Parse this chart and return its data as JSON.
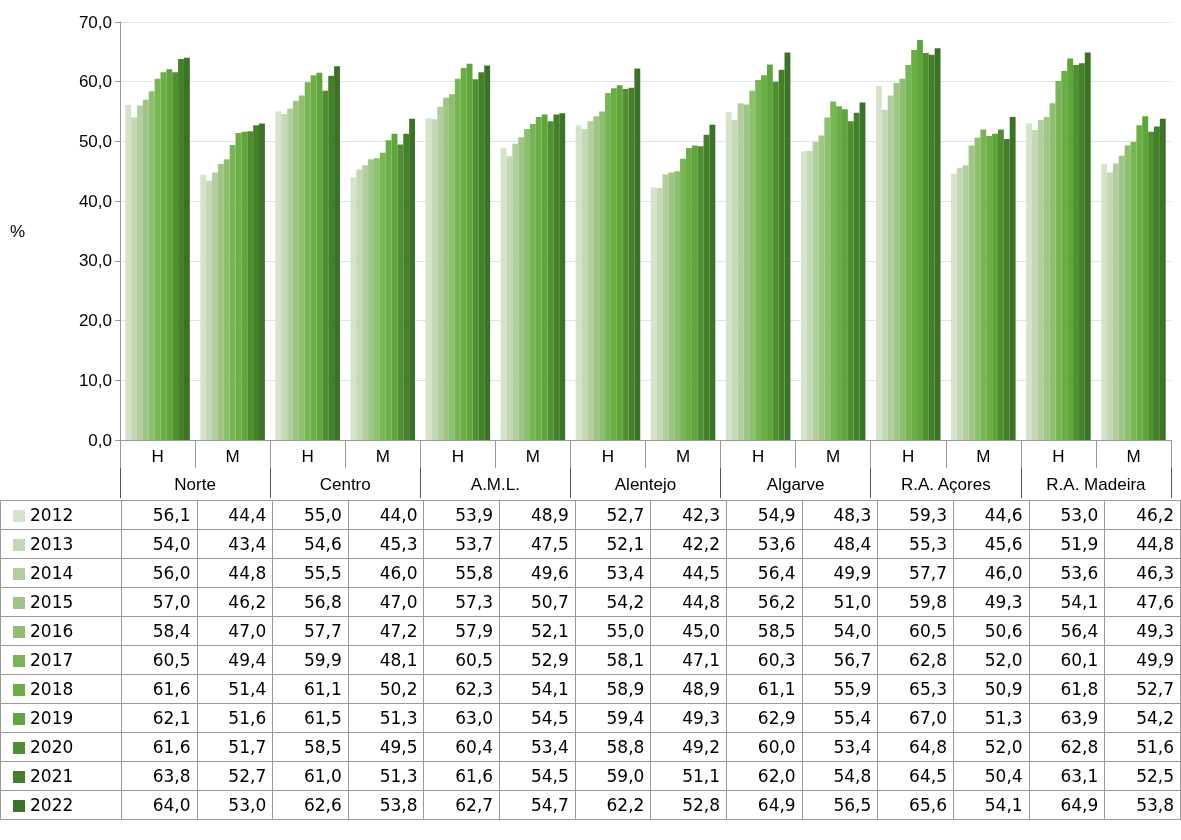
{
  "chart_data": {
    "type": "bar",
    "ylabel": "%",
    "categories": [
      "H",
      "M",
      "H",
      "M",
      "H",
      "M",
      "H",
      "M",
      "H",
      "M",
      "H",
      "M",
      "H",
      "M"
    ],
    "annotations": [
      "Norte",
      "Centro",
      "A.M.L.",
      "Alentejo",
      "Algarve",
      "R.A. Açores",
      "R.A. Madeira"
    ],
    "ylim": [
      0,
      70
    ],
    "yticks": [
      {
        "value": 0,
        "label": "0,0"
      },
      {
        "value": 10,
        "label": "10,0"
      },
      {
        "value": 20,
        "label": "20,0"
      },
      {
        "value": 30,
        "label": "30,0"
      },
      {
        "value": 40,
        "label": "40,0"
      },
      {
        "value": 50,
        "label": "50,0"
      },
      {
        "value": 60,
        "label": "60,0"
      },
      {
        "value": 70,
        "label": "70,0"
      }
    ],
    "grid": "y",
    "legend": "bottom",
    "series": [
      {
        "name": "2012",
        "color": "#d4e3c9",
        "values": [
          56.1,
          44.4,
          55.0,
          44.0,
          53.9,
          48.9,
          52.7,
          42.3,
          54.9,
          48.3,
          59.3,
          44.6,
          53.0,
          46.2
        ],
        "value_labels": [
          "56,1",
          "44,4",
          "55,0",
          "44,0",
          "53,9",
          "48,9",
          "52,7",
          "42,3",
          "54,9",
          "48,3",
          "59,3",
          "44,6",
          "53,0",
          "46,2"
        ]
      },
      {
        "name": "2013",
        "color": "#c3d8b3",
        "values": [
          54.0,
          43.4,
          54.6,
          45.3,
          53.7,
          47.5,
          52.1,
          42.2,
          53.6,
          48.4,
          55.3,
          45.6,
          51.9,
          44.8
        ],
        "value_labels": [
          "54,0",
          "43,4",
          "54,6",
          "45,3",
          "53,7",
          "47,5",
          "52,1",
          "42,2",
          "53,6",
          "48,4",
          "55,3",
          "45,6",
          "51,9",
          "44,8"
        ]
      },
      {
        "name": "2014",
        "color": "#b2ce9e",
        "values": [
          56.0,
          44.8,
          55.5,
          46.0,
          55.8,
          49.6,
          53.4,
          44.5,
          56.4,
          49.9,
          57.7,
          46.0,
          53.6,
          46.3
        ],
        "value_labels": [
          "56,0",
          "44,8",
          "55,5",
          "46,0",
          "55,8",
          "49,6",
          "53,4",
          "44,5",
          "56,4",
          "49,9",
          "57,7",
          "46,0",
          "53,6",
          "46,3"
        ]
      },
      {
        "name": "2015",
        "color": "#9fc585",
        "values": [
          57.0,
          46.2,
          56.8,
          47.0,
          57.3,
          50.7,
          54.2,
          44.8,
          56.2,
          51.0,
          59.8,
          49.3,
          54.1,
          47.6
        ],
        "value_labels": [
          "57,0",
          "46,2",
          "56,8",
          "47,0",
          "57,3",
          "50,7",
          "54,2",
          "44,8",
          "56,2",
          "51,0",
          "59,8",
          "49,3",
          "54,1",
          "47,6"
        ]
      },
      {
        "name": "2016",
        "color": "#8cbf6e",
        "values": [
          58.4,
          47.0,
          57.7,
          47.2,
          57.9,
          52.1,
          55.0,
          45.0,
          58.5,
          54.0,
          60.5,
          50.6,
          56.4,
          49.3
        ],
        "value_labels": [
          "58,4",
          "47,0",
          "57,7",
          "47,2",
          "57,9",
          "52,1",
          "55,0",
          "45,0",
          "58,5",
          "54,0",
          "60,5",
          "50,6",
          "56,4",
          "49,3"
        ]
      },
      {
        "name": "2017",
        "color": "#78b655",
        "values": [
          60.5,
          49.4,
          59.9,
          48.1,
          60.5,
          52.9,
          58.1,
          47.1,
          60.3,
          56.7,
          62.8,
          52.0,
          60.1,
          49.9
        ],
        "value_labels": [
          "60,5",
          "49,4",
          "59,9",
          "48,1",
          "60,5",
          "52,9",
          "58,1",
          "47,1",
          "60,3",
          "56,7",
          "62,8",
          "52,0",
          "60,1",
          "49,9"
        ]
      },
      {
        "name": "2018",
        "color": "#6aae44",
        "values": [
          61.6,
          51.4,
          61.1,
          50.2,
          62.3,
          54.1,
          58.9,
          48.9,
          61.1,
          55.9,
          65.3,
          50.9,
          61.8,
          52.7
        ],
        "value_labels": [
          "61,6",
          "51,4",
          "61,1",
          "50,2",
          "62,3",
          "54,1",
          "58,9",
          "48,9",
          "61,1",
          "55,9",
          "65,3",
          "50,9",
          "61,8",
          "52,7"
        ]
      },
      {
        "name": "2019",
        "color": "#5ea53a",
        "values": [
          62.1,
          51.6,
          61.5,
          51.3,
          63.0,
          54.5,
          59.4,
          49.3,
          62.9,
          55.4,
          67.0,
          51.3,
          63.9,
          54.2
        ],
        "value_labels": [
          "62,1",
          "51,6",
          "61,5",
          "51,3",
          "63,0",
          "54,5",
          "59,4",
          "49,3",
          "62,9",
          "55,4",
          "67,0",
          "51,3",
          "63,9",
          "54,2"
        ]
      },
      {
        "name": "2020",
        "color": "#4e8f2f",
        "values": [
          61.6,
          51.7,
          58.5,
          49.5,
          60.4,
          53.4,
          58.8,
          49.2,
          60.0,
          53.4,
          64.8,
          52.0,
          62.8,
          51.6
        ],
        "value_labels": [
          "61,6",
          "51,7",
          "58,5",
          "49,5",
          "60,4",
          "53,4",
          "58,8",
          "49,2",
          "60,0",
          "53,4",
          "64,8",
          "52,0",
          "62,8",
          "51,6"
        ]
      },
      {
        "name": "2021",
        "color": "#447f2a",
        "values": [
          63.8,
          52.7,
          61.0,
          51.3,
          61.6,
          54.5,
          59.0,
          51.1,
          62.0,
          54.8,
          64.5,
          50.4,
          63.1,
          52.5
        ],
        "value_labels": [
          "63,8",
          "52,7",
          "61,0",
          "51,3",
          "61,6",
          "54,5",
          "59,0",
          "51,1",
          "62,0",
          "54,8",
          "64,5",
          "50,4",
          "63,1",
          "52,5"
        ]
      },
      {
        "name": "2022",
        "color": "#3a7325",
        "values": [
          64.0,
          53.0,
          62.6,
          53.8,
          62.7,
          54.7,
          62.2,
          52.8,
          64.9,
          56.5,
          65.6,
          54.1,
          64.9,
          53.8
        ],
        "value_labels": [
          "64,0",
          "53,0",
          "62,6",
          "53,8",
          "62,7",
          "54,7",
          "62,2",
          "52,8",
          "64,9",
          "56,5",
          "65,6",
          "54,1",
          "64,9",
          "53,8"
        ]
      }
    ]
  }
}
